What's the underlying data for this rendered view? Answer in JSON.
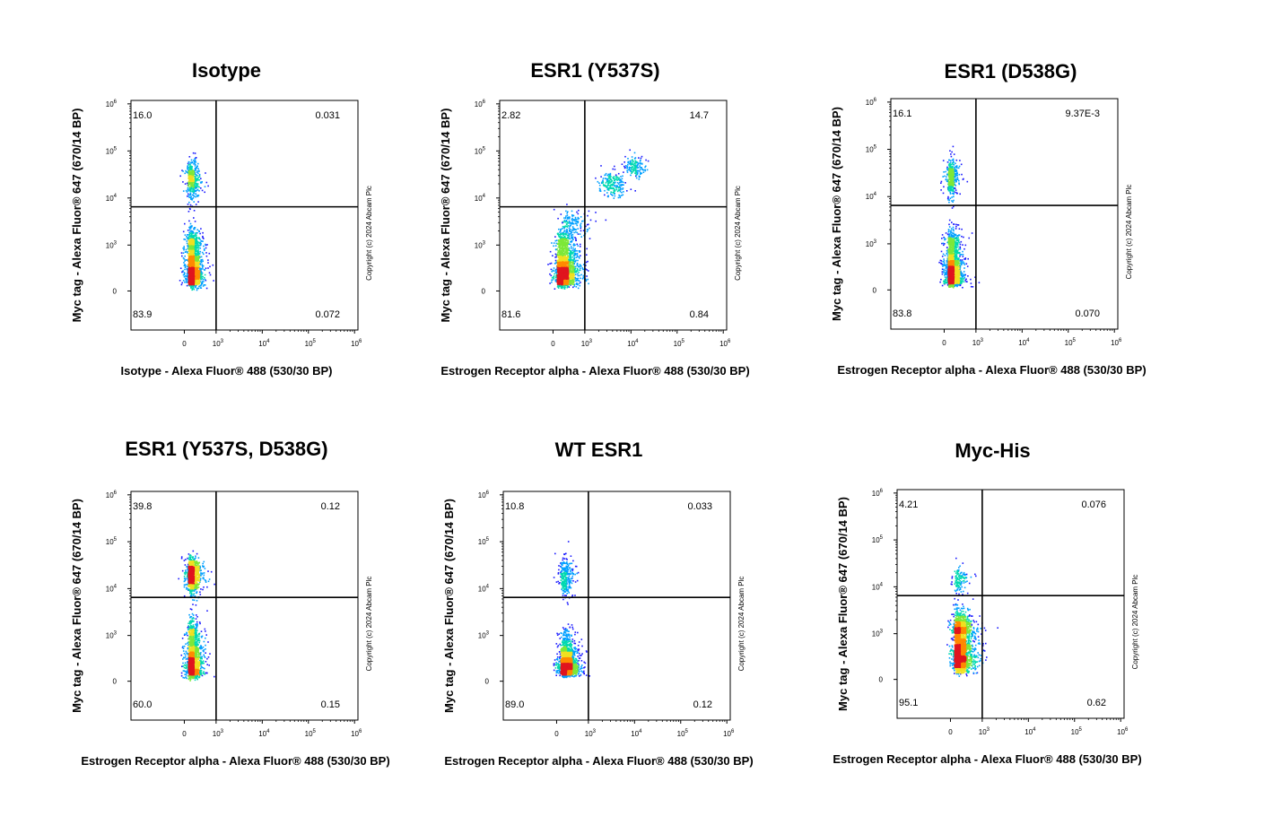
{
  "copyright": "Copyright (c) 2024 Abcam Plc",
  "colors": {
    "density": [
      "#1a1aff",
      "#00a0ff",
      "#00d9b0",
      "#7de838",
      "#f0e020",
      "#ff8a00",
      "#e0141e"
    ]
  },
  "chart_data": [
    {
      "type": "scatter",
      "title": "Isotype",
      "xlabel": "Isotype - Alexa Fluor® 488 (530/30 BP)",
      "ylabel": "Myc tag - Alexa Fluor® 647 (670/14 BP)",
      "scale": "biexponential",
      "x_ticks": [
        {
          "base": "0",
          "exp": ""
        },
        {
          "base": "10",
          "exp": "3"
        },
        {
          "base": "10",
          "exp": "4"
        },
        {
          "base": "10",
          "exp": "5"
        },
        {
          "base": "10",
          "exp": "6"
        }
      ],
      "y_ticks": [
        {
          "base": "0",
          "exp": ""
        },
        {
          "base": "10",
          "exp": "3"
        },
        {
          "base": "10",
          "exp": "4"
        },
        {
          "base": "10",
          "exp": "5"
        },
        {
          "base": "10",
          "exp": "6"
        }
      ],
      "gate": {
        "x": 1000,
        "y": 6500
      },
      "quadrants": {
        "upper_left": "16.0",
        "upper_right": "0.031",
        "lower_left": "83.9",
        "lower_right": "0.072"
      },
      "populations": [
        {
          "x": 250,
          "y": 500,
          "spread_x": 0.35,
          "spread_y": 0.55,
          "weight": 0.84
        },
        {
          "x": 220,
          "y": 25000,
          "spread_x": 0.35,
          "spread_y": 0.4,
          "weight": 0.16
        }
      ]
    },
    {
      "type": "scatter",
      "title": "ESR1 (Y537S)",
      "xlabel": "Estrogen Receptor alpha - Alexa Fluor® 488 (530/30 BP)",
      "ylabel": "Myc tag - Alexa Fluor® 647 (670/14 BP)",
      "scale": "biexponential",
      "x_ticks": [
        {
          "base": "0",
          "exp": ""
        },
        {
          "base": "10",
          "exp": "3"
        },
        {
          "base": "10",
          "exp": "4"
        },
        {
          "base": "10",
          "exp": "5"
        },
        {
          "base": "10",
          "exp": "6"
        }
      ],
      "y_ticks": [
        {
          "base": "0",
          "exp": ""
        },
        {
          "base": "10",
          "exp": "3"
        },
        {
          "base": "10",
          "exp": "4"
        },
        {
          "base": "10",
          "exp": "5"
        },
        {
          "base": "10",
          "exp": "6"
        }
      ],
      "gate": {
        "x": 1000,
        "y": 6500
      },
      "quadrants": {
        "upper_left": "2.82",
        "upper_right": "14.7",
        "lower_left": "81.6",
        "lower_right": "0.84"
      },
      "populations": [
        {
          "x": 320,
          "y": 480,
          "spread_x": 0.4,
          "spread_y": 0.5,
          "weight": 0.8
        },
        {
          "x": 600,
          "y": 3000,
          "spread_x": 0.35,
          "spread_y": 0.3,
          "weight": 0.06
        },
        {
          "x": 4000,
          "y": 20000,
          "spread_x": 0.3,
          "spread_y": 0.25,
          "weight": 0.08
        },
        {
          "x": 12000,
          "y": 50000,
          "spread_x": 0.2,
          "spread_y": 0.2,
          "weight": 0.06
        }
      ]
    },
    {
      "type": "scatter",
      "title": "ESR1 (D538G)",
      "xlabel": "Estrogen Receptor alpha - Alexa Fluor® 488 (530/30 BP)",
      "ylabel": "Myc tag - Alexa Fluor® 647 (670/14 BP)",
      "scale": "biexponential",
      "x_ticks": [
        {
          "base": "0",
          "exp": ""
        },
        {
          "base": "10",
          "exp": "3"
        },
        {
          "base": "10",
          "exp": "4"
        },
        {
          "base": "10",
          "exp": "5"
        },
        {
          "base": "10",
          "exp": "6"
        }
      ],
      "y_ticks": [
        {
          "base": "0",
          "exp": ""
        },
        {
          "base": "10",
          "exp": "3"
        },
        {
          "base": "10",
          "exp": "4"
        },
        {
          "base": "10",
          "exp": "5"
        },
        {
          "base": "10",
          "exp": "6"
        }
      ],
      "gate": {
        "x": 1000,
        "y": 6500
      },
      "quadrants": {
        "upper_left": "16.1",
        "upper_right": "9.37E-3",
        "lower_left": "83.8",
        "lower_right": "0.070"
      },
      "populations": [
        {
          "x": 240,
          "y": 450,
          "spread_x": 0.35,
          "spread_y": 0.55,
          "weight": 0.84
        },
        {
          "x": 210,
          "y": 25000,
          "spread_x": 0.35,
          "spread_y": 0.4,
          "weight": 0.16
        }
      ]
    },
    {
      "type": "scatter",
      "title": "ESR1 (Y537S, D538G)",
      "xlabel": "Estrogen Receptor alpha - Alexa Fluor® 488 (530/30 BP)",
      "ylabel": "Myc tag - Alexa Fluor® 647 (670/14 BP)",
      "scale": "biexponential",
      "x_ticks": [
        {
          "base": "0",
          "exp": ""
        },
        {
          "base": "10",
          "exp": "3"
        },
        {
          "base": "10",
          "exp": "4"
        },
        {
          "base": "10",
          "exp": "5"
        },
        {
          "base": "10",
          "exp": "6"
        }
      ],
      "y_ticks": [
        {
          "base": "0",
          "exp": ""
        },
        {
          "base": "10",
          "exp": "3"
        },
        {
          "base": "10",
          "exp": "4"
        },
        {
          "base": "10",
          "exp": "5"
        },
        {
          "base": "10",
          "exp": "6"
        }
      ],
      "gate": {
        "x": 1000,
        "y": 6500
      },
      "quadrants": {
        "upper_left": "39.8",
        "upper_right": "0.12",
        "lower_left": "60.0",
        "lower_right": "0.15"
      },
      "populations": [
        {
          "x": 250,
          "y": 450,
          "spread_x": 0.35,
          "spread_y": 0.6,
          "weight": 0.6
        },
        {
          "x": 240,
          "y": 20000,
          "spread_x": 0.35,
          "spread_y": 0.35,
          "weight": 0.4
        }
      ]
    },
    {
      "type": "scatter",
      "title": "WT ESR1",
      "xlabel": "Estrogen Receptor alpha - Alexa Fluor® 488 (530/30 BP)",
      "ylabel": "Myc tag - Alexa Fluor® 647 (670/14 BP)",
      "scale": "biexponential",
      "x_ticks": [
        {
          "base": "0",
          "exp": ""
        },
        {
          "base": "10",
          "exp": "3"
        },
        {
          "base": "10",
          "exp": "4"
        },
        {
          "base": "10",
          "exp": "5"
        },
        {
          "base": "10",
          "exp": "6"
        }
      ],
      "y_ticks": [
        {
          "base": "0",
          "exp": ""
        },
        {
          "base": "10",
          "exp": "3"
        },
        {
          "base": "10",
          "exp": "4"
        },
        {
          "base": "10",
          "exp": "5"
        },
        {
          "base": "10",
          "exp": "6"
        }
      ],
      "gate": {
        "x": 1000,
        "y": 6500
      },
      "quadrants": {
        "upper_left": "10.8",
        "upper_right": "0.033",
        "lower_left": "89.0",
        "lower_right": "0.12"
      },
      "populations": [
        {
          "x": 300,
          "y": 380,
          "spread_x": 0.35,
          "spread_y": 0.4,
          "weight": 0.89
        },
        {
          "x": 260,
          "y": 18000,
          "spread_x": 0.35,
          "spread_y": 0.4,
          "weight": 0.11
        }
      ]
    },
    {
      "type": "scatter",
      "title": "Myc-His",
      "xlabel": "Estrogen Receptor alpha - Alexa Fluor® 488 (530/30 BP)",
      "ylabel": "Myc tag - Alexa Fluor® 647 (670/14 BP)",
      "scale": "biexponential",
      "x_ticks": [
        {
          "base": "0",
          "exp": ""
        },
        {
          "base": "10",
          "exp": "3"
        },
        {
          "base": "10",
          "exp": "4"
        },
        {
          "base": "10",
          "exp": "5"
        },
        {
          "base": "10",
          "exp": "6"
        }
      ],
      "y_ticks": [
        {
          "base": "0",
          "exp": ""
        },
        {
          "base": "10",
          "exp": "3"
        },
        {
          "base": "10",
          "exp": "4"
        },
        {
          "base": "10",
          "exp": "5"
        },
        {
          "base": "10",
          "exp": "6"
        }
      ],
      "gate": {
        "x": 1000,
        "y": 6500
      },
      "quadrants": {
        "upper_left": "4.21",
        "upper_right": "0.076",
        "lower_left": "95.1",
        "lower_right": "0.62"
      },
      "populations": [
        {
          "x": 300,
          "y": 700,
          "spread_x": 0.4,
          "spread_y": 0.55,
          "weight": 0.95
        },
        {
          "x": 260,
          "y": 14000,
          "spread_x": 0.35,
          "spread_y": 0.3,
          "weight": 0.05
        }
      ]
    }
  ]
}
